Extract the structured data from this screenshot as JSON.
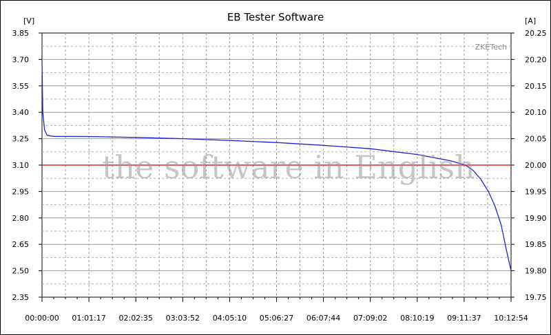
{
  "chart_data": {
    "type": "line",
    "title": "EB Tester Software",
    "ylabel_left": "[V]",
    "ylabel_right": "[A]",
    "brand": "ZKETech",
    "watermark": "the software in English",
    "grid": true,
    "x_ticks": [
      "00:00:00",
      "01:01:17",
      "02:02:35",
      "03:03:52",
      "04:05:10",
      "05:06:27",
      "06:07:44",
      "07:09:02",
      "08:10:19",
      "09:11:37",
      "10:12:54"
    ],
    "y_left_ticks": [
      "3.85",
      "3.70",
      "3.55",
      "3.40",
      "3.25",
      "3.10",
      "2.95",
      "2.80",
      "2.65",
      "2.50",
      "2.35"
    ],
    "y_right_ticks": [
      "20.25",
      "20.20",
      "20.15",
      "20.10",
      "20.05",
      "20.00",
      "19.95",
      "19.90",
      "19.85",
      "19.80",
      "19.75"
    ],
    "ylim_left": [
      2.35,
      3.85
    ],
    "ylim_right": [
      19.75,
      20.25
    ],
    "xlim_seconds": [
      0,
      36774
    ],
    "series": [
      {
        "axis": "left",
        "color": "#2020e0",
        "x_seconds": [
          0,
          60,
          200,
          400,
          700,
          1000,
          3677,
          7355,
          11032,
          14710,
          18387,
          22064,
          25742,
          29419,
          32000,
          33200,
          33800,
          34400,
          35000,
          35500,
          36000,
          36400,
          36774
        ],
        "y": [
          3.69,
          3.4,
          3.3,
          3.27,
          3.265,
          3.263,
          3.262,
          3.257,
          3.25,
          3.24,
          3.228,
          3.212,
          3.193,
          3.16,
          3.125,
          3.1,
          3.07,
          3.02,
          2.95,
          2.87,
          2.76,
          2.62,
          2.5
        ]
      },
      {
        "axis": "right",
        "color": "#e02020",
        "x_seconds": [
          0,
          36774
        ],
        "y": [
          20.0,
          20.0
        ]
      }
    ]
  }
}
